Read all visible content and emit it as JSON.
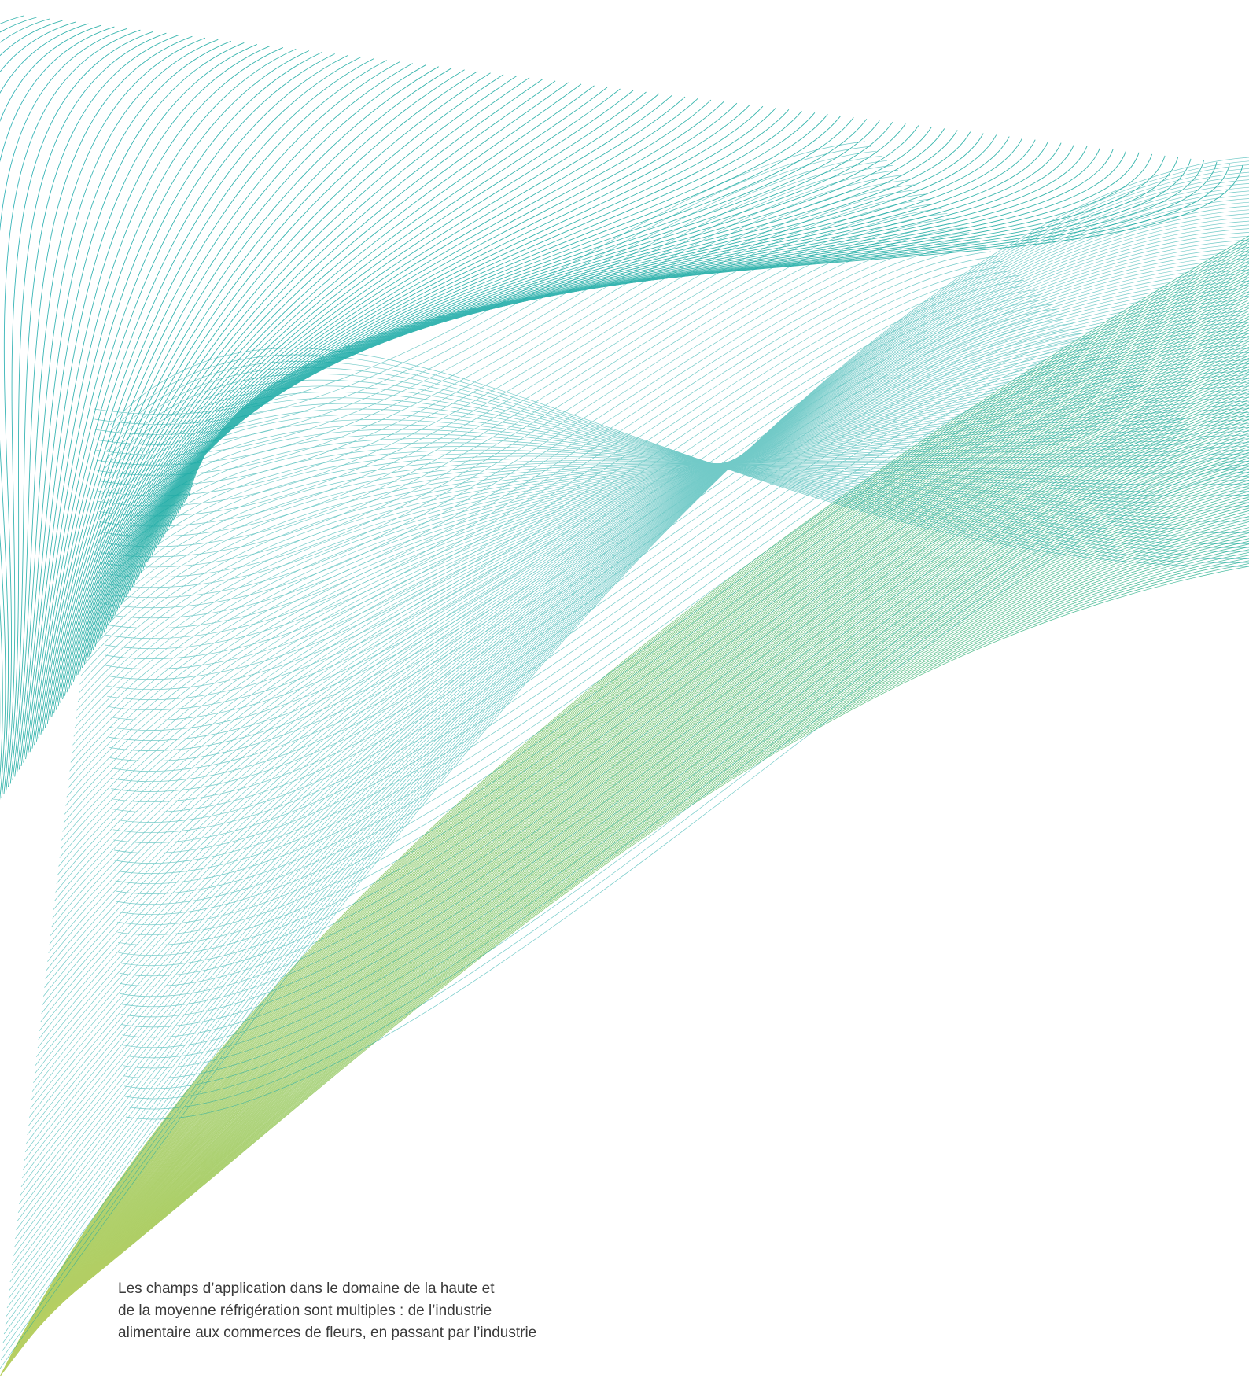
{
  "colors": {
    "background": "#ffffff",
    "text": "#3a3a3a",
    "teal": "#14a7b2",
    "green": "#1eb08f",
    "lime": "#9cc43e"
  },
  "artwork": {
    "description_icon": "line-wave-artwork"
  },
  "caption": {
    "lines": [
      "Les champs d’application dans le domaine de la haute et",
      "de la moyenne réfrigération sont multiples : de l’industrie",
      "alimentaire aux commerces de fleurs, en passant par l’industrie"
    ]
  }
}
